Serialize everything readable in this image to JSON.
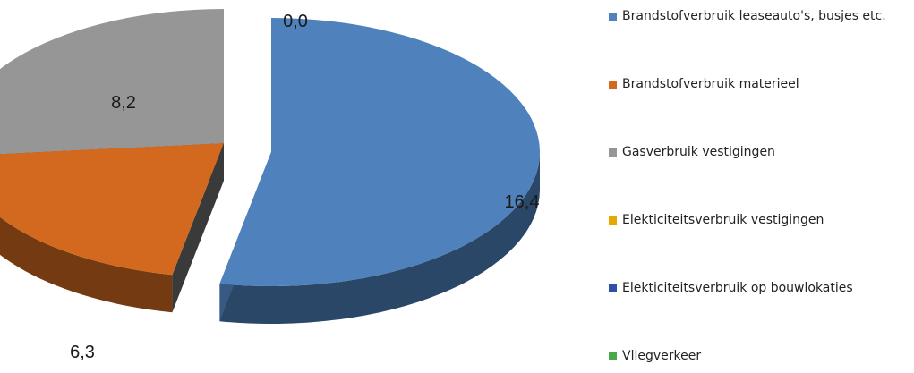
{
  "chart_data": {
    "type": "pie",
    "style": "3d-exploded",
    "categories": [
      "Brandstofverbruik leaseauto's, busjes etc.",
      "Brandstofverbruik materieel",
      "Gasverbruik vestigingen",
      "Elekticiteitsverbruik vestigingen",
      "Elekticiteitsverbruik op bouwlokaties",
      "Vliegverkeer"
    ],
    "values": [
      16.4,
      6.3,
      8.2,
      0.0,
      0.0,
      0.0
    ],
    "data_labels": [
      "16,4",
      "6,3",
      "8,2",
      "0,0",
      "",
      ""
    ],
    "colors": [
      "#4f81bd",
      "#d2691e",
      "#969696",
      "#e6a800",
      "#2e4fa3",
      "#4aa84a"
    ],
    "legend_placement": "right"
  }
}
